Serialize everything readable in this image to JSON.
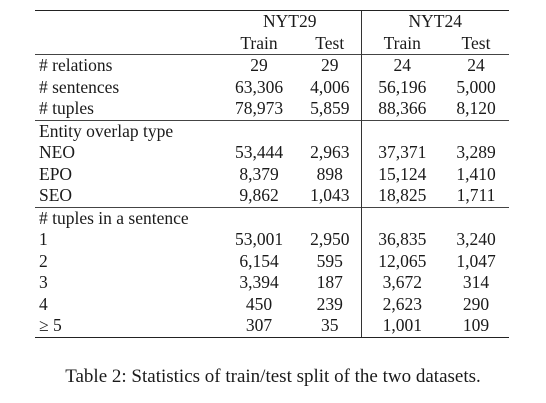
{
  "table": {
    "datasets": [
      "NYT29",
      "NYT24"
    ],
    "splits": [
      "Train",
      "Test",
      "Train",
      "Test"
    ],
    "rows_basic": [
      {
        "label": "# relations",
        "values": [
          "29",
          "29",
          "24",
          "24"
        ]
      },
      {
        "label": "# sentences",
        "values": [
          "63,306",
          "4,006",
          "56,196",
          "5,000"
        ]
      },
      {
        "label": "# tuples",
        "values": [
          "78,973",
          "5,859",
          "88,366",
          "8,120"
        ]
      }
    ],
    "section_overlap": "Entity overlap type",
    "rows_overlap": [
      {
        "label": "NEO",
        "values": [
          "53,444",
          "2,963",
          "37,371",
          "3,289"
        ]
      },
      {
        "label": "EPO",
        "values": [
          "8,379",
          "898",
          "15,124",
          "1,410"
        ]
      },
      {
        "label": "SEO",
        "values": [
          "9,862",
          "1,043",
          "18,825",
          "1,711"
        ]
      }
    ],
    "section_tuples": "# tuples in a sentence",
    "rows_tuples": [
      {
        "label": "1",
        "values": [
          "53,001",
          "2,950",
          "36,835",
          "3,240"
        ]
      },
      {
        "label": "2",
        "values": [
          "6,154",
          "595",
          "12,065",
          "1,047"
        ]
      },
      {
        "label": "3",
        "values": [
          "3,394",
          "187",
          "3,672",
          "314"
        ]
      },
      {
        "label": "4",
        "values": [
          "450",
          "239",
          "2,623",
          "290"
        ]
      },
      {
        "label": "≥ 5",
        "values": [
          "307",
          "35",
          "1,001",
          "109"
        ]
      }
    ]
  },
  "caption": "Table 2: Statistics of train/test split of the two datasets."
}
